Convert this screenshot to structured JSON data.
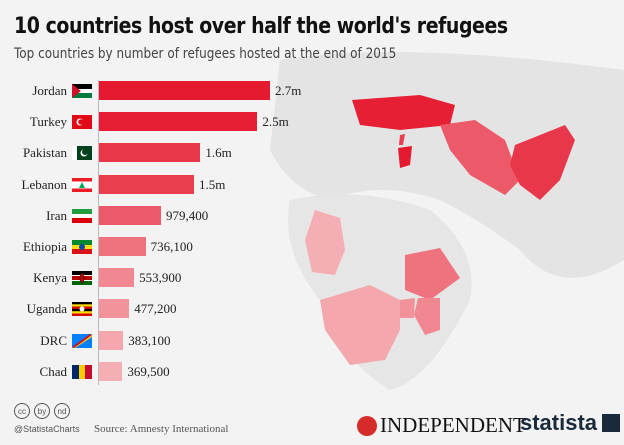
{
  "chart_data": {
    "type": "bar",
    "orientation": "horizontal",
    "title": "10 countries host over half the world's refugees",
    "subtitle": "Top countries by number of refugees hosted at the end of 2015",
    "categories": [
      "Jordan",
      "Turkey",
      "Pakistan",
      "Lebanon",
      "Iran",
      "Ethiopia",
      "Kenya",
      "Uganda",
      "DRC",
      "Chad"
    ],
    "values": [
      2700000,
      2500000,
      1600000,
      1500000,
      979400,
      736100,
      553900,
      477200,
      383100,
      369500
    ],
    "value_labels": [
      "2.7m",
      "2.5m",
      "1.6m",
      "1.5m",
      "979,400",
      "736,100",
      "553,900",
      "477,200",
      "383,100",
      "369,500"
    ],
    "colors": [
      "#e5192f",
      "#e61f34",
      "#e8374a",
      "#e93d50",
      "#ec5a69",
      "#ef737f",
      "#f18891",
      "#f2939b",
      "#f4a7ad",
      "#f5aeb3"
    ],
    "xlim": [
      0,
      2700000
    ],
    "xlabel": "",
    "ylabel": ""
  },
  "footer": {
    "handle": "@StatistaCharts",
    "source": "Source: Amnesty International",
    "partner": "INDEPENDENT",
    "brand": "statista",
    "cc_icons": [
      "cc",
      "by",
      "nd"
    ]
  }
}
